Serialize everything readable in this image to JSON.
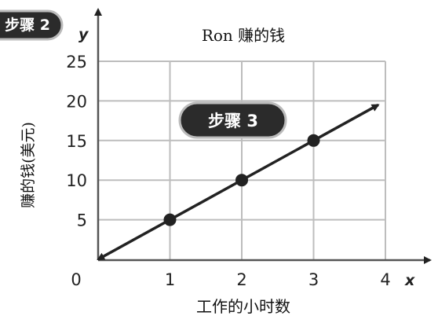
{
  "chart_data": {
    "type": "line",
    "title": "Ron 赚的钱",
    "xlabel": "工作的小时数",
    "ylabel": "赚的钱(美元)",
    "x_axis_letter": "x",
    "y_axis_letter": "y",
    "xlim": [
      0,
      4
    ],
    "ylim": [
      0,
      25
    ],
    "x_ticks": [
      "0",
      "1",
      "2",
      "3",
      "4"
    ],
    "y_ticks": [
      "5",
      "10",
      "15",
      "20",
      "25"
    ],
    "grid": true,
    "series": [
      {
        "x": [
          1,
          2,
          3
        ],
        "y": [
          5,
          10,
          15
        ]
      }
    ],
    "line_range": {
      "x": [
        0,
        3.9
      ],
      "y": [
        0,
        19.5
      ]
    },
    "colors": {
      "line": "#222222",
      "points": "#222222",
      "grid": "#bdbdbd",
      "axes": "#555555"
    }
  },
  "annotations": [
    {
      "label": "步骤 2"
    },
    {
      "label": "步骤 3"
    }
  ]
}
